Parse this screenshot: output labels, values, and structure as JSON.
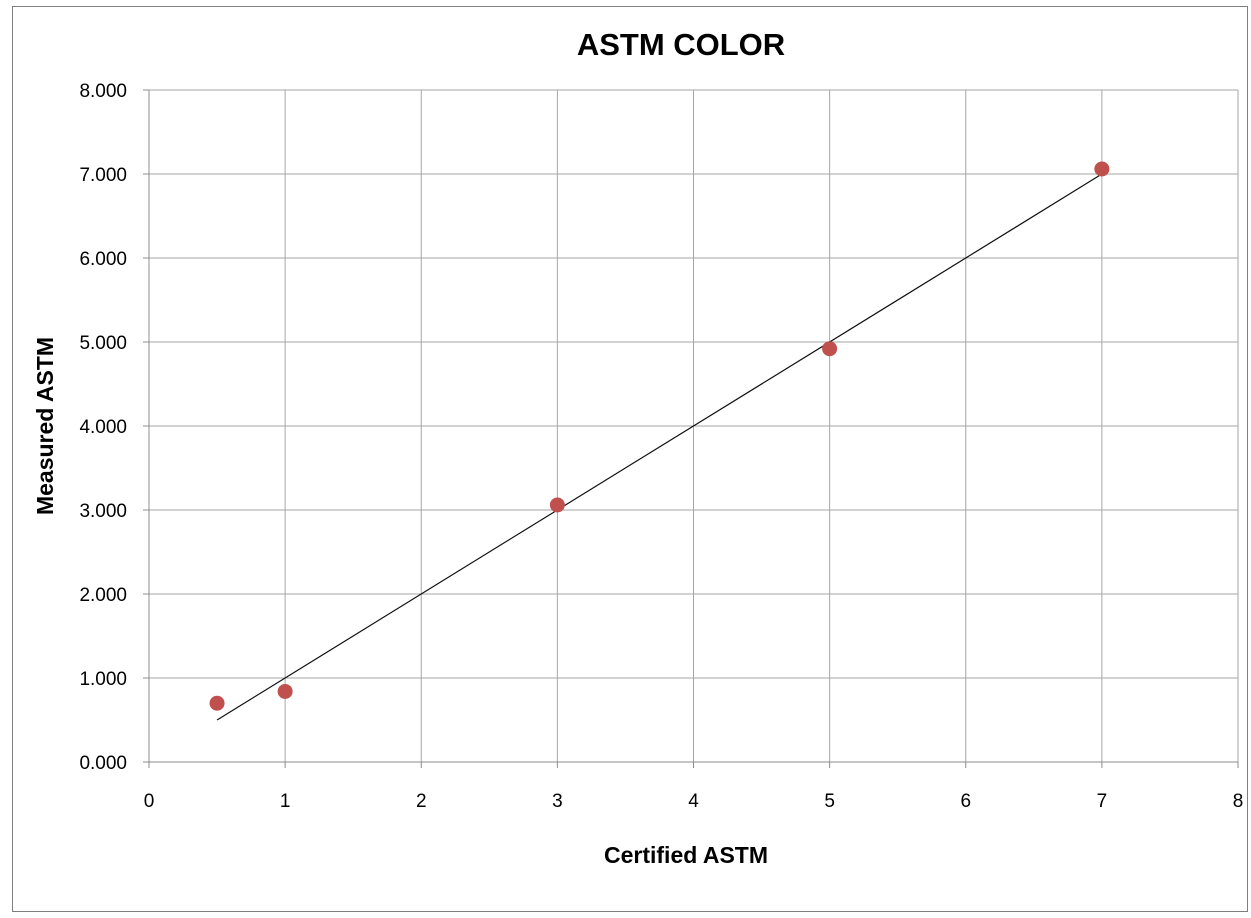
{
  "chart_data": {
    "type": "scatter",
    "title": "ASTM COLOR",
    "xlabel": "Certified ASTM",
    "ylabel": "Measured ASTM",
    "xlim": [
      0,
      8
    ],
    "ylim": [
      0,
      8
    ],
    "x_ticks": [
      "0",
      "1",
      "2",
      "3",
      "4",
      "5",
      "6",
      "7",
      "8"
    ],
    "y_ticks": [
      "0.000",
      "1.000",
      "2.000",
      "3.000",
      "4.000",
      "5.000",
      "6.000",
      "7.000",
      "8.000"
    ],
    "grid": true,
    "legend": "none",
    "series": [
      {
        "color": "#c0504d",
        "points": [
          {
            "x": 0.5,
            "y": 0.7
          },
          {
            "x": 1,
            "y": 0.84
          },
          {
            "x": 3,
            "y": 3.06
          },
          {
            "x": 5,
            "y": 4.92
          },
          {
            "x": 7,
            "y": 7.06
          }
        ]
      }
    ],
    "trendline": {
      "type": "linear",
      "color": "#111111",
      "from": {
        "x": 0.5,
        "y": 0.5
      },
      "to": {
        "x": 7,
        "y": 7.0
      }
    }
  }
}
